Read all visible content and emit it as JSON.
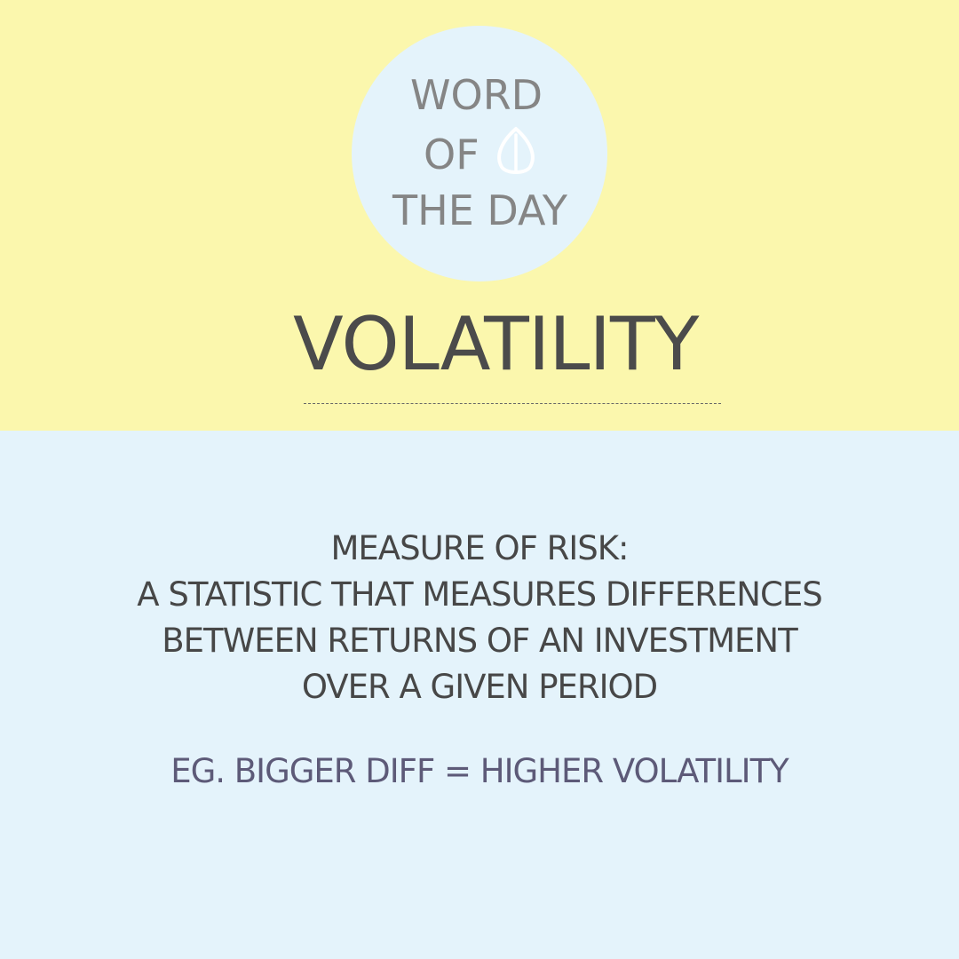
{
  "logo": {
    "line1": "WORD",
    "line2": "OF",
    "line3": "THE DAY",
    "icon": "leaf-icon"
  },
  "word": "VOLATILITY",
  "definition": {
    "line1": "MEASURE OF RISK:",
    "line2": "A STATISTIC THAT MEASURES DIFFERENCES",
    "line3": "BETWEEN RETURNS OF AN INVESTMENT",
    "line4": "OVER A GIVEN PERIOD"
  },
  "example": "EG. BIGGER DIFF = HIGHER VOLATILITY",
  "colors": {
    "top_background": "#fbf7ad",
    "bottom_background": "#e4f3fb",
    "logo_text": "#858585",
    "headword_text": "#4b4b4b",
    "definition_text": "#474747",
    "example_text": "#5d5a78"
  }
}
